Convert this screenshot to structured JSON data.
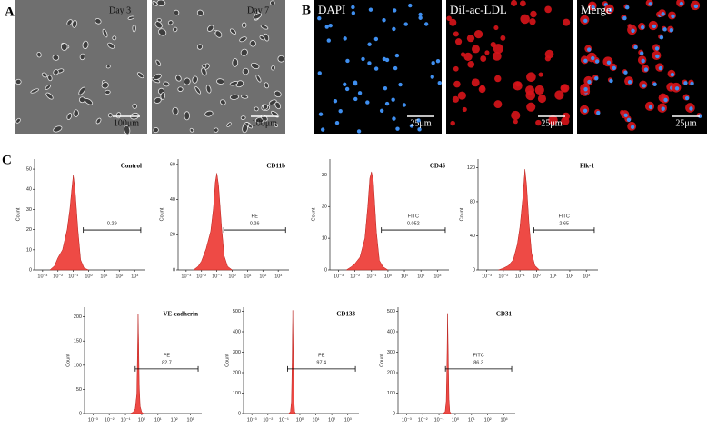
{
  "figure": {
    "panel_labels": [
      "A",
      "B",
      "C"
    ],
    "a_images": [
      {
        "label": "Day 3",
        "scale": "100μm"
      },
      {
        "label": "Day 7",
        "scale": "100μm"
      }
    ],
    "b_images": [
      {
        "label": "DAPI",
        "scale": "25μm"
      },
      {
        "label": "DiI-ac-LDL",
        "scale": "25μm"
      },
      {
        "label": "Merge",
        "scale": "25μm"
      }
    ]
  },
  "chart_data": [
    {
      "type": "area",
      "title": "Control",
      "y_label": "Count",
      "color": "#ee4a45",
      "log_x": true,
      "x": [
        0.003,
        0.006,
        0.01,
        0.02,
        0.04,
        0.06,
        0.08,
        0.1,
        0.13,
        0.2,
        0.3,
        0.5,
        1
      ],
      "values": [
        0,
        2,
        6,
        10,
        20,
        30,
        40,
        47,
        40,
        20,
        5,
        1,
        0
      ],
      "xlim": [
        0.0003,
        5000
      ],
      "ylim": [
        0,
        55
      ],
      "yticks": [
        0,
        10,
        20,
        30,
        40,
        50
      ],
      "xticks": [
        {
          "value": 0.001,
          "label": "10⁻³"
        },
        {
          "value": 0.01,
          "label": "10⁻²"
        },
        {
          "value": 0.1,
          "label": "10⁻¹"
        },
        {
          "value": 1,
          "label": "10⁰"
        },
        {
          "value": 10,
          "label": "10¹"
        },
        {
          "value": 100,
          "label": "10²"
        },
        {
          "value": 1000,
          "label": "10³"
        }
      ],
      "gate": [
        0.45,
        2500
      ],
      "gate_value": 0.29
    },
    {
      "type": "area",
      "title": "CD11b",
      "y_label": "Count",
      "color": "#ee4a45",
      "log_x": true,
      "x": [
        0.003,
        0.006,
        0.01,
        0.02,
        0.04,
        0.06,
        0.08,
        0.1,
        0.13,
        0.2,
        0.3,
        0.5,
        1
      ],
      "values": [
        0,
        2,
        5,
        12,
        22,
        35,
        50,
        55,
        48,
        25,
        8,
        2,
        0
      ],
      "xlim": [
        0.0003,
        5000
      ],
      "ylim": [
        0,
        63
      ],
      "yticks": [
        0,
        20,
        40,
        60
      ],
      "xticks": [
        {
          "value": 0.001,
          "label": "10⁻³"
        },
        {
          "value": 0.01,
          "label": "10⁻²"
        },
        {
          "value": 0.1,
          "label": "10⁻¹"
        },
        {
          "value": 1,
          "label": "10⁰"
        },
        {
          "value": 10,
          "label": "10¹"
        },
        {
          "value": 100,
          "label": "10²"
        },
        {
          "value": 1000,
          "label": "10³"
        }
      ],
      "gate": [
        0.28,
        3000
      ],
      "gate_label": "PE",
      "gate_value": 0.26
    },
    {
      "type": "area",
      "title": "CD45",
      "y_label": "Count",
      "color": "#ee4a45",
      "log_x": true,
      "x": [
        0.003,
        0.006,
        0.01,
        0.02,
        0.04,
        0.06,
        0.08,
        0.1,
        0.13,
        0.2,
        0.3,
        0.5,
        1
      ],
      "values": [
        0,
        1,
        2,
        4,
        10,
        20,
        29,
        31,
        28,
        12,
        3,
        1,
        0
      ],
      "xlim": [
        0.0003,
        5000
      ],
      "ylim": [
        0,
        35
      ],
      "yticks": [
        0,
        10,
        20,
        30
      ],
      "xticks": [
        {
          "value": 0.001,
          "label": "10⁻³"
        },
        {
          "value": 0.01,
          "label": "10⁻²"
        },
        {
          "value": 0.1,
          "label": "10⁻¹"
        },
        {
          "value": 1,
          "label": "10⁰"
        },
        {
          "value": 10,
          "label": "10¹"
        },
        {
          "value": 100,
          "label": "10²"
        },
        {
          "value": 1000,
          "label": "10³"
        }
      ],
      "gate": [
        0.4,
        3000
      ],
      "gate_label": "FITC",
      "gate_value": 0.052
    },
    {
      "type": "area",
      "title": "Flk-1",
      "y_label": "Count",
      "color": "#ee4a45",
      "log_x": true,
      "x": [
        0.005,
        0.01,
        0.02,
        0.04,
        0.07,
        0.1,
        0.15,
        0.2,
        0.25,
        0.35,
        0.5,
        0.8,
        1.5
      ],
      "values": [
        0,
        2,
        5,
        12,
        30,
        50,
        85,
        118,
        100,
        55,
        20,
        5,
        0
      ],
      "xlim": [
        0.0003,
        5000
      ],
      "ylim": [
        0,
        130
      ],
      "yticks": [
        0,
        40,
        80,
        120
      ],
      "xticks": [
        {
          "value": 0.001,
          "label": "10⁻³"
        },
        {
          "value": 0.01,
          "label": "10⁻²"
        },
        {
          "value": 0.1,
          "label": "10⁻¹"
        },
        {
          "value": 1,
          "label": "10⁰"
        },
        {
          "value": 10,
          "label": "10¹"
        },
        {
          "value": 100,
          "label": "10²"
        },
        {
          "value": 1000,
          "label": "10³"
        }
      ],
      "gate": [
        0.7,
        3000
      ],
      "gate_label": "FITC",
      "gate_value": 2.65
    },
    {
      "type": "area",
      "title": "VE-cadherin",
      "y_label": "Count",
      "color": "#ee4a45",
      "log_x": true,
      "x": [
        0.2,
        0.3,
        0.4,
        0.5,
        0.55,
        0.6,
        0.65,
        0.7,
        0.8,
        1,
        1.3
      ],
      "values": [
        0,
        3,
        10,
        40,
        120,
        205,
        150,
        60,
        15,
        3,
        0
      ],
      "xlim": [
        0.0003,
        5000
      ],
      "ylim": [
        0,
        220
      ],
      "yticks": [
        0,
        50,
        100,
        150,
        200
      ],
      "xticks": [
        {
          "value": 0.001,
          "label": "10⁻³"
        },
        {
          "value": 0.01,
          "label": "10⁻²"
        },
        {
          "value": 0.1,
          "label": "10⁻¹"
        },
        {
          "value": 1,
          "label": "10⁰"
        },
        {
          "value": 10,
          "label": "10¹"
        },
        {
          "value": 100,
          "label": "10²"
        },
        {
          "value": 1000,
          "label": "10³"
        }
      ],
      "gate": [
        0.4,
        3000
      ],
      "gate_label": "PE",
      "gate_value": 82.7
    },
    {
      "type": "area",
      "title": "CD133",
      "y_label": "Count",
      "color": "#ee4a45",
      "log_x": true,
      "x": [
        0.2,
        0.26,
        0.3,
        0.33,
        0.36,
        0.39,
        0.42,
        0.47,
        0.55
      ],
      "values": [
        0,
        10,
        60,
        250,
        505,
        300,
        80,
        10,
        0
      ],
      "xlim": [
        0.0003,
        5000
      ],
      "ylim": [
        0,
        520
      ],
      "yticks": [
        0,
        100,
        200,
        300,
        400,
        500
      ],
      "xticks": [
        {
          "value": 0.001,
          "label": "10⁻³"
        },
        {
          "value": 0.01,
          "label": "10⁻²"
        },
        {
          "value": 0.1,
          "label": "10⁻¹"
        },
        {
          "value": 1,
          "label": "10⁰"
        },
        {
          "value": 10,
          "label": "10¹"
        },
        {
          "value": 100,
          "label": "10²"
        },
        {
          "value": 1000,
          "label": "10³"
        }
      ],
      "gate": [
        0.17,
        3000
      ],
      "gate_label": "PE",
      "gate_value": 97.4
    },
    {
      "type": "area",
      "title": "CD31",
      "y_label": "Count",
      "color": "#ee4a45",
      "log_x": true,
      "x": [
        0.18,
        0.24,
        0.28,
        0.31,
        0.34,
        0.37,
        0.41,
        0.46,
        0.55
      ],
      "values": [
        0,
        10,
        60,
        240,
        490,
        290,
        70,
        10,
        0
      ],
      "xlim": [
        0.0003,
        5000
      ],
      "ylim": [
        0,
        520
      ],
      "yticks": [
        0,
        100,
        200,
        300,
        400,
        500
      ],
      "xticks": [
        {
          "value": 0.001,
          "label": "10⁻³"
        },
        {
          "value": 0.01,
          "label": "10⁻²"
        },
        {
          "value": 0.1,
          "label": "10⁻¹"
        },
        {
          "value": 1,
          "label": "10⁰"
        },
        {
          "value": 10,
          "label": "10¹"
        },
        {
          "value": 100,
          "label": "10²"
        },
        {
          "value": 1000,
          "label": "10³"
        }
      ],
      "gate": [
        0.25,
        3000
      ],
      "gate_label": "FITC",
      "gate_value": 86.3
    }
  ]
}
